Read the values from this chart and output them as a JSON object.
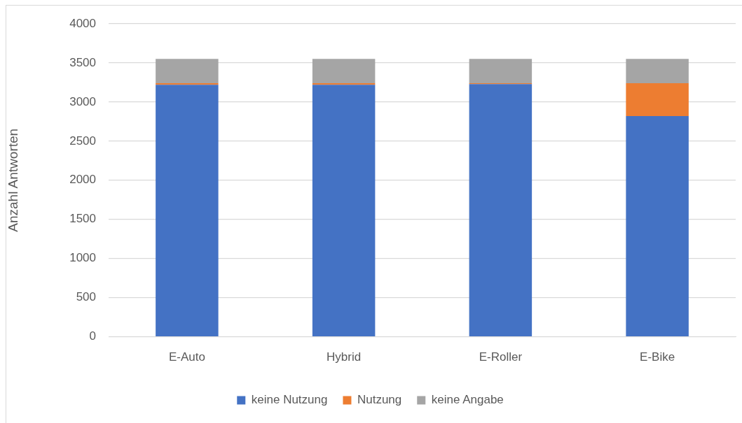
{
  "chart_data": {
    "type": "bar",
    "stacked": true,
    "categories": [
      "E-Auto",
      "Hybrid",
      "E-Roller",
      "E-Bike"
    ],
    "series": [
      {
        "name": "keine Nutzung",
        "color": "#4472c4",
        "values": [
          3220,
          3220,
          3230,
          2820
        ]
      },
      {
        "name": "Nutzung",
        "color": "#ed7d31",
        "values": [
          20,
          20,
          10,
          420
        ]
      },
      {
        "name": "keine Angabe",
        "color": "#a5a5a5",
        "values": [
          310,
          310,
          310,
          310
        ]
      }
    ],
    "ylabel": "Anzahl Antworten",
    "ylim": [
      0,
      4000
    ],
    "yticks": [
      0,
      500,
      1000,
      1500,
      2000,
      2500,
      3000,
      3500,
      4000
    ],
    "grid": "y",
    "legend": "bottom"
  }
}
